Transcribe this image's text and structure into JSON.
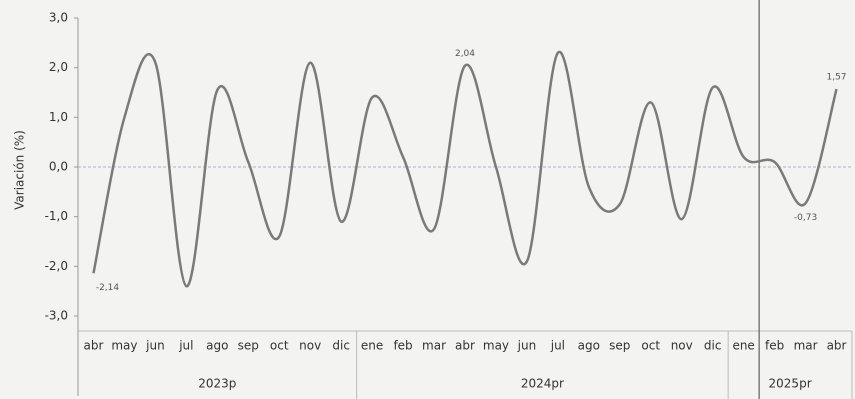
{
  "chart_data": {
    "type": "line",
    "y_label": "Variación (%)",
    "groups": [
      {
        "label": "2023p",
        "categories": [
          "abr",
          "may",
          "jun",
          "jul",
          "ago",
          "sep",
          "oct",
          "nov",
          "dic"
        ]
      },
      {
        "label": "2024pr",
        "categories": [
          "ene",
          "feb",
          "mar",
          "abr",
          "may",
          "jun",
          "jul",
          "ago",
          "sep",
          "oct",
          "nov",
          "dic"
        ]
      },
      {
        "label": "2025pr",
        "categories": [
          "ene",
          "feb",
          "mar",
          "abr"
        ]
      }
    ],
    "series": [
      {
        "name": "Variación",
        "color": "#7a7a7a",
        "values": [
          -2.14,
          1.0,
          2.1,
          -2.4,
          1.55,
          0.1,
          -1.4,
          2.1,
          -1.1,
          1.4,
          0.2,
          -1.25,
          2.04,
          0.0,
          -1.9,
          2.3,
          -0.4,
          -0.75,
          1.3,
          -1.05,
          1.6,
          0.2,
          0.1,
          -0.73,
          1.57
        ],
        "value_labels": [
          "-2,14",
          null,
          null,
          null,
          null,
          null,
          null,
          null,
          null,
          null,
          null,
          null,
          "2,04",
          null,
          null,
          null,
          null,
          null,
          null,
          null,
          null,
          null,
          null,
          "-0,73",
          "1,57"
        ]
      }
    ],
    "ylim": [
      -3,
      3
    ],
    "yticks": [
      {
        "value": -3,
        "label": "-3,0"
      },
      {
        "value": -2,
        "label": "-2,0"
      },
      {
        "value": -1,
        "label": "-1,0"
      },
      {
        "value": 0,
        "label": "0,0"
      },
      {
        "value": 1,
        "label": "1,0"
      },
      {
        "value": 2,
        "label": "2,0"
      },
      {
        "value": 3,
        "label": "3,0"
      }
    ]
  }
}
